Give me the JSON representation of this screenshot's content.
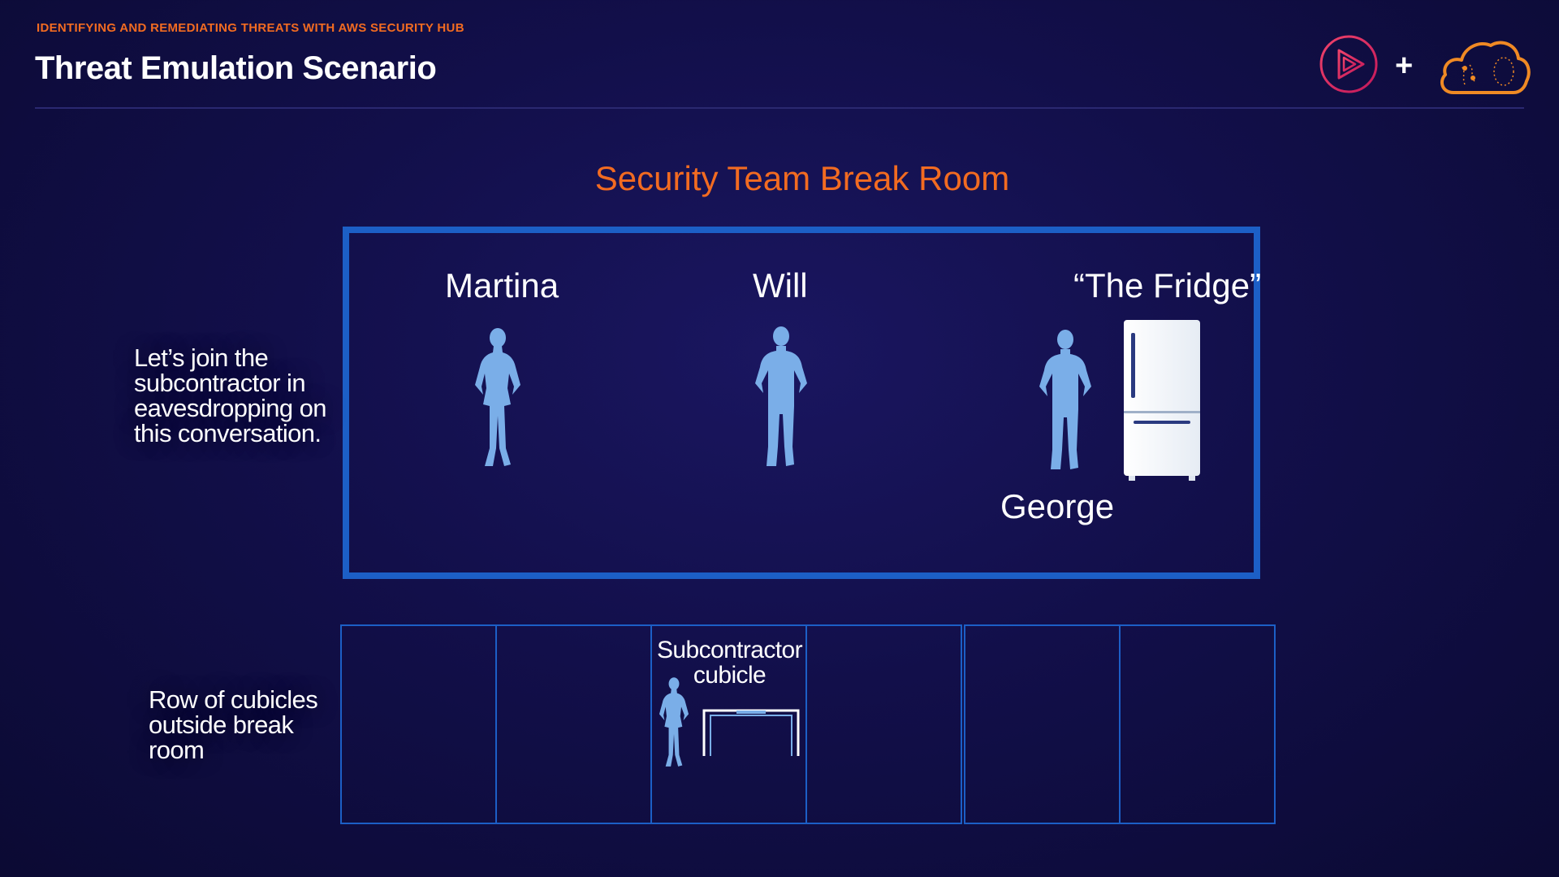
{
  "header": {
    "kicker": "IDENTIFYING AND REMEDIATING THREATS WITH AWS SECURITY HUB",
    "title": "Threat Emulation Scenario",
    "plus": "+"
  },
  "scene": {
    "title": "Security Team Break Room",
    "people": {
      "martina": "Martina",
      "will": "Will",
      "fridge": "“The Fridge”",
      "george": "George"
    },
    "join_text": [
      "Let’s join the",
      "subcontractor in",
      "eavesdropping on",
      "this conversation."
    ],
    "cubicle_row_text": [
      "Row of cubicles",
      "outside break",
      "room"
    ],
    "subcontractor_label": [
      "Subcontractor",
      "cubicle"
    ]
  },
  "colors": {
    "accent_orange": "#f26b21",
    "border_blue": "#1c5fc6",
    "figure_blue": "#7aaee8",
    "background": "#120f4a"
  },
  "icons": [
    "play-logo-icon",
    "plus-icon",
    "cloud-brain-icon",
    "female-figure-icon",
    "male-figure-icon",
    "fridge-icon",
    "desk-icon"
  ]
}
